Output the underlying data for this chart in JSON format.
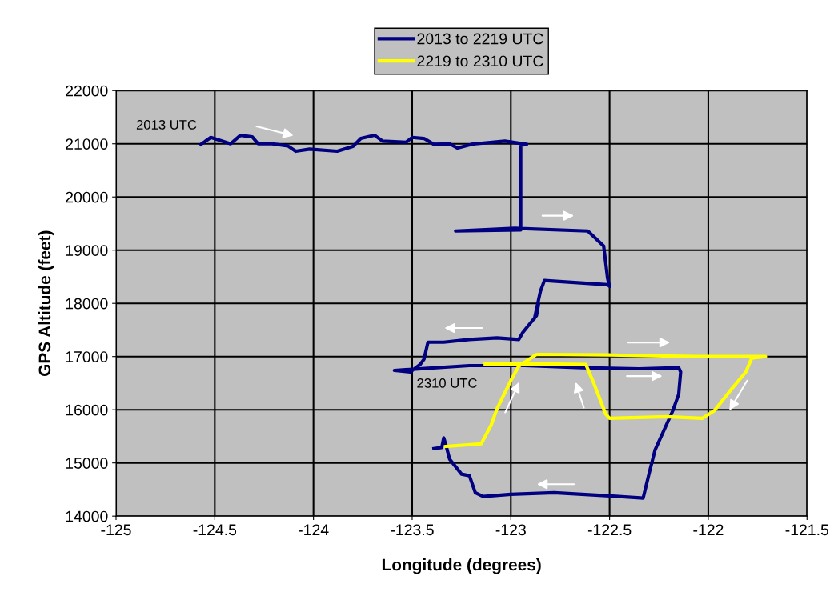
{
  "chart_data": {
    "type": "line",
    "xlabel": "Longitude (degrees)",
    "ylabel": "GPS Altitude (feet)",
    "series": [
      {
        "name": "2013 to 2219 UTC",
        "color": "#000080",
        "x": [
          -124.57,
          -124.52,
          -124.42,
          -124.37,
          -124.31,
          -124.28,
          -124.21,
          -124.13,
          -124.09,
          -124.02,
          -123.88,
          -123.8,
          -123.76,
          -123.69,
          -123.65,
          -123.53,
          -123.5,
          -123.44,
          -123.39,
          -123.31,
          -123.27,
          -123.2,
          -123.18,
          -123.03,
          -122.92,
          -122.95,
          -122.95,
          -123.28,
          -122.98,
          -122.61,
          -122.53,
          -122.51,
          -122.5,
          -122.51,
          -122.83,
          -122.85,
          -122.88,
          -122.86,
          -122.87,
          -122.94,
          -122.96,
          -123.07,
          -123.21,
          -123.34,
          -123.42,
          -123.44,
          -123.46,
          -123.51,
          -123.59,
          -123.5,
          -123.21,
          -122.93,
          -122.64,
          -122.35,
          -122.15,
          -122.14,
          -122.15,
          -122.18,
          -122.27,
          -122.3,
          -122.33,
          -122.5,
          -122.78,
          -123.0,
          -123.14,
          -123.18,
          -123.21,
          -123.25,
          -123.31,
          -123.33,
          -123.34,
          -123.35,
          -123.39
        ],
        "values": [
          20990,
          21120,
          21000,
          21160,
          21130,
          21000,
          21000,
          20960,
          20860,
          20900,
          20860,
          20950,
          21100,
          21160,
          21050,
          21030,
          21120,
          21100,
          20990,
          21000,
          20920,
          20990,
          21000,
          21050,
          20990,
          20970,
          19380,
          19360,
          19410,
          19360,
          19080,
          18470,
          18320,
          18350,
          18430,
          18230,
          17720,
          17980,
          17770,
          17450,
          17320,
          17350,
          17320,
          17270,
          17270,
          16950,
          16850,
          16710,
          16740,
          16760,
          16830,
          16830,
          16790,
          16770,
          16790,
          16710,
          16290,
          15980,
          15240,
          14800,
          14340,
          14380,
          14440,
          14410,
          14370,
          14440,
          14760,
          14790,
          15070,
          15350,
          15470,
          15290,
          15270
        ]
      },
      {
        "name": "2219 to 2310 UTC",
        "color": "#ffff00",
        "x": [
          -123.33,
          -123.15,
          -123.1,
          -123.07,
          -123.0,
          -122.96,
          -122.87,
          -122.5,
          -122.07,
          -121.71,
          -121.78,
          -121.81,
          -121.88,
          -121.97,
          -122.03,
          -122.21,
          -122.5,
          -122.52,
          -122.58,
          -122.62,
          -122.78,
          -123.13
        ],
        "values": [
          15310,
          15360,
          15710,
          16020,
          16550,
          16820,
          17040,
          17030,
          17000,
          17000,
          16970,
          16710,
          16400,
          15980,
          15840,
          15870,
          15840,
          15920,
          16500,
          16850,
          16860,
          16860
        ]
      }
    ],
    "xlim": [
      -125,
      -121.5
    ],
    "xticks": [
      -125,
      -124.5,
      -124,
      -123.5,
      -123,
      -122.5,
      -122,
      -121.5
    ],
    "ylim": [
      14000,
      22000
    ],
    "yticks": [
      14000,
      15000,
      16000,
      17000,
      18000,
      19000,
      20000,
      21000,
      22000
    ],
    "annotations": [
      "2013 UTC",
      "2310 UTC"
    ],
    "grid": true,
    "legend": "top",
    "marker": "none",
    "line_style": "solid"
  }
}
